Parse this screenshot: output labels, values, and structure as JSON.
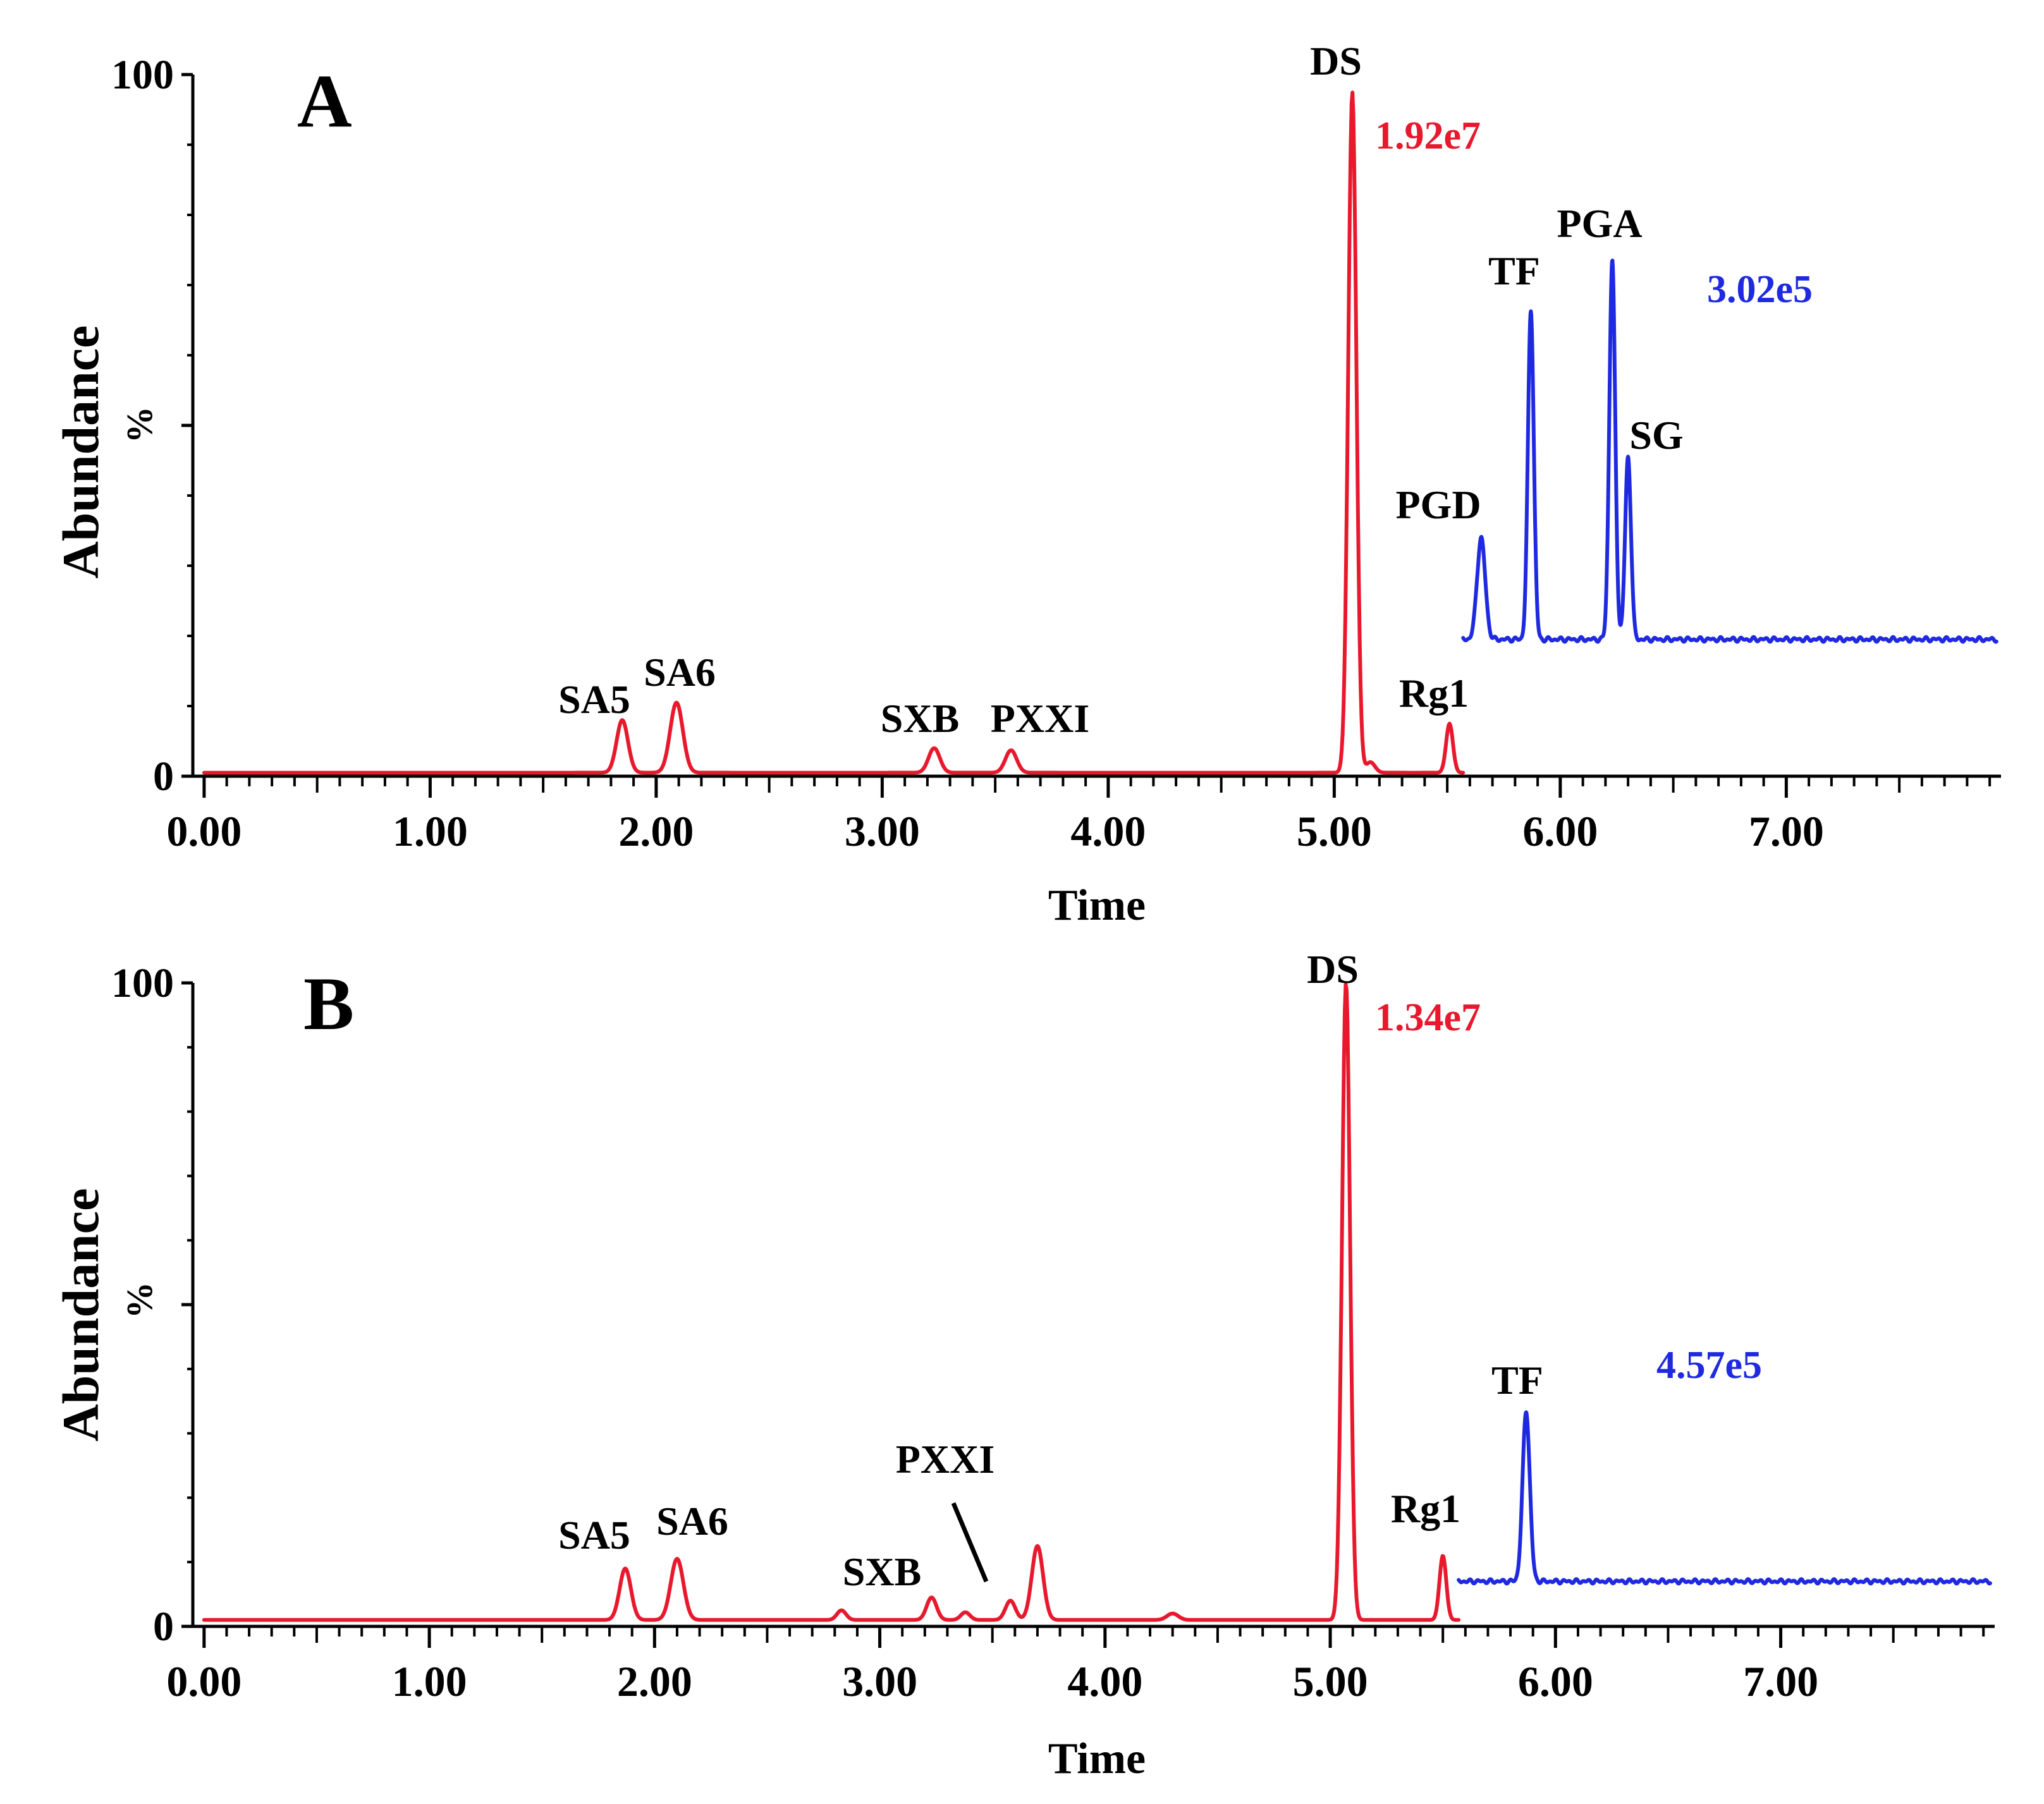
{
  "colors": {
    "red": "#e8182d",
    "blue": "#1f2ae0",
    "axis": "#000000"
  },
  "chart_data": [
    {
      "type": "line",
      "panel_label": "A",
      "xlabel": "Time",
      "ylabel": "Abundance",
      "ylabel_unit": "%",
      "xlim": [
        -0.05,
        7.95
      ],
      "ylim": [
        0,
        100
      ],
      "x_ticks": [
        "0.00",
        "1.00",
        "2.00",
        "3.00",
        "4.00",
        "5.00",
        "6.00",
        "7.00"
      ],
      "x_tick_values": [
        0,
        1,
        2,
        3,
        4,
        5,
        6,
        7
      ],
      "y_ticks": [
        "0",
        "%",
        "100"
      ],
      "series": [
        {
          "name": "red trace",
          "color": "#e8182d",
          "intensity_label": "1.92e7",
          "x_range": [
            0.0,
            5.57
          ],
          "baseline": 0.5,
          "peaks": [
            {
              "label": "SA5",
              "x": 1.85,
              "height": 7.5,
              "width": 0.025
            },
            {
              "label": "SA6",
              "x": 2.09,
              "height": 10,
              "width": 0.028
            },
            {
              "label": "SXB",
              "x": 3.23,
              "height": 3.5,
              "width": 0.025
            },
            {
              "label": "PXXI",
              "x": 3.57,
              "height": 3.2,
              "width": 0.025
            },
            {
              "label": "DS",
              "x": 5.08,
              "height": 97,
              "width": 0.018
            },
            {
              "label": "",
              "x": 5.16,
              "height": 1.5,
              "width": 0.02
            },
            {
              "label": "Rg1",
              "x": 5.51,
              "height": 7,
              "width": 0.015
            }
          ]
        },
        {
          "name": "blue trace",
          "color": "#1f2ae0",
          "intensity_label": "3.02e5",
          "x_range": [
            5.57,
            7.93
          ],
          "baseline": 19.5,
          "peaks": [
            {
              "label": "PGD",
              "x": 5.65,
              "height": 14.5,
              "width": 0.018
            },
            {
              "label": "TF",
              "x": 5.87,
              "height": 47,
              "width": 0.013
            },
            {
              "label": "PGA",
              "x": 6.23,
              "height": 54,
              "width": 0.013
            },
            {
              "label": "SG",
              "x": 6.3,
              "height": 26,
              "width": 0.013
            }
          ]
        }
      ],
      "annotations": [
        {
          "text": "SA5"
        },
        {
          "text": "SA6"
        },
        {
          "text": "SXB"
        },
        {
          "text": "PXXI"
        },
        {
          "text": "DS"
        },
        {
          "text": "Rg1"
        },
        {
          "text": "PGD"
        },
        {
          "text": "TF"
        },
        {
          "text": "PGA"
        },
        {
          "text": "SG"
        }
      ]
    },
    {
      "type": "line",
      "panel_label": "B",
      "xlabel": "Time",
      "ylabel": "Abundance",
      "ylabel_unit": "%",
      "xlim": [
        -0.05,
        7.95
      ],
      "ylim": [
        0,
        100
      ],
      "x_ticks": [
        "0.00",
        "1.00",
        "2.00",
        "3.00",
        "4.00",
        "5.00",
        "6.00",
        "7.00"
      ],
      "x_tick_values": [
        0,
        1,
        2,
        3,
        4,
        5,
        6,
        7
      ],
      "y_ticks": [
        "0",
        "%",
        "100"
      ],
      "series": [
        {
          "name": "red trace",
          "color": "#e8182d",
          "intensity_label": "1.34e7",
          "x_range": [
            0.0,
            5.57
          ],
          "baseline": 1,
          "peaks": [
            {
              "label": "SA5",
              "x": 1.87,
              "height": 8,
              "width": 0.025
            },
            {
              "label": "SA6",
              "x": 2.1,
              "height": 9.5,
              "width": 0.028
            },
            {
              "label": "",
              "x": 2.83,
              "height": 1.5,
              "width": 0.02
            },
            {
              "label": "SXB",
              "x": 3.23,
              "height": 3.5,
              "width": 0.022
            },
            {
              "label": "",
              "x": 3.38,
              "height": 1.2,
              "width": 0.02
            },
            {
              "label": "PXXI",
              "x": 3.58,
              "height": 3,
              "width": 0.022
            },
            {
              "label": "",
              "x": 3.7,
              "height": 11.5,
              "width": 0.025
            },
            {
              "label": "",
              "x": 4.3,
              "height": 1,
              "width": 0.025
            },
            {
              "label": "DS",
              "x": 5.07,
              "height": 99,
              "width": 0.018
            },
            {
              "label": "Rg1",
              "x": 5.5,
              "height": 10,
              "width": 0.015
            }
          ]
        },
        {
          "name": "blue trace",
          "color": "#1f2ae0",
          "intensity_label": "4.57e5",
          "x_range": [
            5.57,
            7.93
          ],
          "baseline": 7,
          "peaks": [
            {
              "label": "TF",
              "x": 5.87,
              "height": 26.5,
              "width": 0.016
            }
          ]
        }
      ],
      "annotations": [
        {
          "text": "SA5"
        },
        {
          "text": "SA6"
        },
        {
          "text": "SXB"
        },
        {
          "text": "PXXI"
        },
        {
          "text": "DS"
        },
        {
          "text": "Rg1"
        },
        {
          "text": "TF"
        }
      ]
    }
  ]
}
